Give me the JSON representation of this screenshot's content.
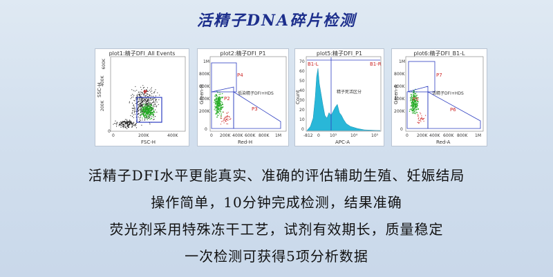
{
  "title": "活精子DNA碎片检测",
  "plots": [
    {
      "title": "plot1:精子DFI_All Events",
      "xlabel": "FSC-H",
      "ylabel": "SSC-H",
      "xticks": [
        "0",
        "200K",
        "400K"
      ],
      "yticks": [
        "600K",
        "400K",
        "200K",
        "0"
      ],
      "gate": "P1"
    },
    {
      "title": "plot2:精子DFI_P1",
      "xlabel": "Red-H",
      "ylabel": "Green-H",
      "xticks": [
        "0",
        "200K",
        "400K",
        "600K",
        "800K",
        "1M"
      ],
      "yticks": [
        "1M",
        "800K",
        "600K",
        "400K",
        "200K",
        "0"
      ],
      "gates": [
        "P4",
        "P2",
        "P3"
      ],
      "note": "低染精子DFI+HDS"
    },
    {
      "title": "plot5:精子DFI_P1",
      "xlabel": "APC-A",
      "ylabel": "Count",
      "xticks": [
        "-812",
        "0",
        "10³",
        "10⁴",
        "10⁵"
      ],
      "yticks": [
        "70",
        "60",
        "50",
        "40",
        "30",
        "20",
        "10",
        "0"
      ],
      "left_label": "B1-L",
      "right_label": "B1-R",
      "note": "精子死活区分"
    },
    {
      "title": "plot6:精子DFI_B1-L",
      "xlabel": "Red-A",
      "ylabel": "Green-A",
      "xticks": [
        "0",
        "200K",
        "400K",
        "600K",
        "800K",
        "1M"
      ],
      "yticks": [
        "1M",
        "800K",
        "600K",
        "400K",
        "200K",
        "0"
      ],
      "gates": [
        "P7",
        "P5",
        "P6"
      ],
      "note": "活精子DFI+HDS"
    }
  ],
  "lines": [
    "活精子DFI水平更能真实、准确的评估辅助生殖、妊娠结局",
    "操作简单，10分钟完成检测，结果准确",
    "荧光剂采用特殊冻干工艺，试剂有效期长，质量稳定",
    "一次检测可获得5项分析数据"
  ],
  "colors": {
    "title": "#1d2f8c",
    "gate": "#2b3cc0",
    "gate_label": "#cc2222",
    "histogram": "#29b7d8",
    "dots_green": "#22aa22",
    "dots_black": "#222222",
    "dots_red": "#d03030"
  }
}
